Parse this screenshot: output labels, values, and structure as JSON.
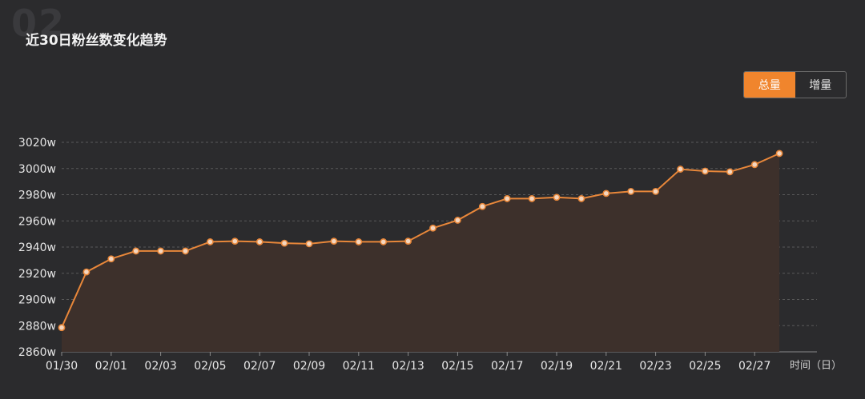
{
  "bg_number": "02",
  "title": "近30日粉丝数变化趋势",
  "toggle": {
    "total_label": "总量",
    "increment_label": "增量",
    "selected": "total"
  },
  "colors": {
    "accent": "#f0852d",
    "line": "#e8873a",
    "area": "#3d302b",
    "grid": "#5a5a5a",
    "background": "#2b2b2d"
  },
  "chart_data": {
    "type": "area",
    "x": [
      "01/30",
      "01/31",
      "02/01",
      "02/02",
      "02/03",
      "02/04",
      "02/05",
      "02/06",
      "02/07",
      "02/08",
      "02/09",
      "02/10",
      "02/11",
      "02/12",
      "02/13",
      "02/14",
      "02/15",
      "02/16",
      "02/17",
      "02/18",
      "02/19",
      "02/20",
      "02/21",
      "02/22",
      "02/23",
      "02/24",
      "02/25",
      "02/26",
      "02/27",
      "02/28"
    ],
    "values": [
      2878.5,
      2921,
      2931,
      2937,
      2937,
      2937,
      2944,
      2944.5,
      2944,
      2943,
      2942.5,
      2944.5,
      2944,
      2944,
      2944.5,
      2954.5,
      2960.5,
      2971,
      2977,
      2977,
      2978,
      2977,
      2981,
      2982.5,
      2982.5,
      2999.5,
      2998,
      2997.5,
      3003,
      3011.5
    ],
    "xtick_labels": [
      "01/30",
      "02/01",
      "02/03",
      "02/05",
      "02/07",
      "02/09",
      "02/11",
      "02/13",
      "02/15",
      "02/17",
      "02/19",
      "02/21",
      "02/23",
      "02/25",
      "02/27"
    ],
    "ytick_values": [
      2860,
      2880,
      2900,
      2920,
      2940,
      2960,
      2980,
      3000,
      3020
    ],
    "ytick_labels": [
      "2860w",
      "2880w",
      "2900w",
      "2920w",
      "2940w",
      "2960w",
      "2980w",
      "3000w",
      "3020w"
    ],
    "ylim": [
      2860,
      3020
    ],
    "xlabel": "时间（日）",
    "ylabel": "",
    "grid": true
  }
}
